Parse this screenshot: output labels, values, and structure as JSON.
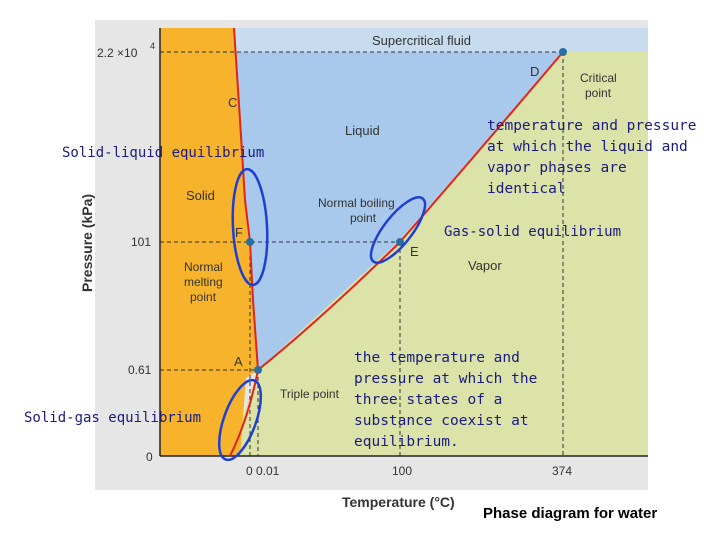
{
  "diagram": {
    "regions": {
      "supercritical": "Supercritical fluid",
      "liquid": "Liquid",
      "solid": "Solid",
      "vapor": "Vapor"
    },
    "axes": {
      "xlabel": "Temperature (°C)",
      "ylabel": "Pressure (kPa)",
      "x_ticks": [
        "0",
        "0.01",
        "100",
        "374"
      ],
      "y_ticks": [
        "2.2 ×10",
        "4",
        "101",
        "0.61",
        "0"
      ]
    },
    "points": {
      "A": "A",
      "C": "C",
      "D": "D",
      "E": "E",
      "F": "F"
    },
    "point_labels": {
      "critical_line1": "Critical",
      "critical_line2": "point",
      "normal_boiling_line1": "Normal boiling",
      "normal_boiling_line2": "point",
      "normal_melting_line1": "Normal",
      "normal_melting_line2": "melting",
      "normal_melting_line3": "point",
      "triple_point": "Triple point"
    },
    "colors": {
      "solid": "#f7b32b",
      "liquid": "#a9c9ec",
      "vapor": "#dbe3a8",
      "supercritical": "#c7dcee",
      "curve": "#e2231a",
      "annotation": "#1b1b80",
      "ellipse": "#1e3fd0",
      "point": "#2a6fa0"
    }
  },
  "annotations": {
    "solid_liquid": "Solid-liquid equilibrium",
    "critical_def": [
      "temperature and pressure",
      "at which the liquid and",
      "vapor phases are",
      "identical"
    ],
    "gas_solid": "Gas-solid equilibrium",
    "triple_def": [
      "the temperature and",
      "pressure at which the",
      "three states of a",
      "substance coexist at",
      "equilibrium."
    ],
    "solid_gas": "Solid-gas equilibrium"
  },
  "caption": "Phase diagram for water"
}
